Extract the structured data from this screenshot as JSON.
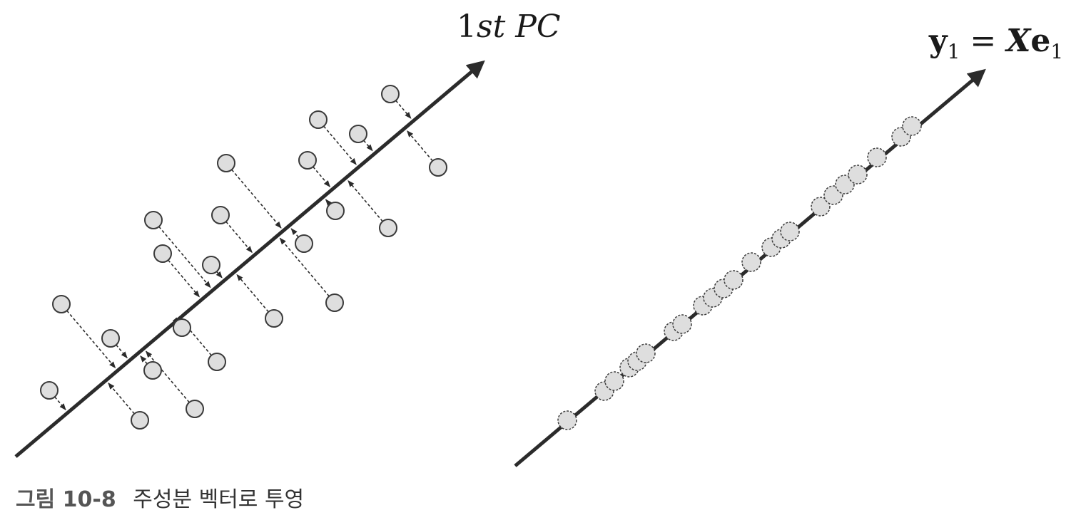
{
  "left_panel": {
    "axis_label": "1st PC",
    "axis_label_parts": [
      {
        "text": "1",
        "italic": false
      },
      {
        "text": "st PC",
        "italic": true
      }
    ]
  },
  "right_panel": {
    "equation": {
      "lhs": "y",
      "lhs_sub": "1",
      "op": "=",
      "rhs_matrix": "X",
      "rhs_vec": "e",
      "rhs_sub": "1"
    }
  },
  "caption": {
    "number": "그림 10-8",
    "text": "주성분 벡터로 투영"
  },
  "colors": {
    "line": "#2b2b2b",
    "point_fill": "#dedede",
    "point_stroke": "#3a3a3a",
    "arrow": "#2b2b2b"
  }
}
